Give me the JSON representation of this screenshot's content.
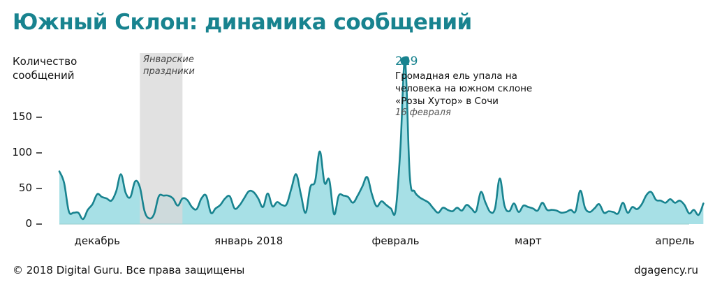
{
  "title": "Южный Склон: динамика сообщений",
  "footer": {
    "copyright": "© 2018 Digital Guru. Все права защищены",
    "site": "dgagency.ru"
  },
  "colors": {
    "accent": "#18838f",
    "area_fill": "#a7e0e6",
    "holiday_band": "#d9d9d9"
  },
  "chart_data": {
    "type": "area",
    "ylabel": "Количество сообщений",
    "xlabel": "",
    "ylim": [
      0,
      229
    ],
    "yticks": [
      0,
      50,
      100,
      150
    ],
    "ytick_labels": [
      "0",
      "50",
      "100",
      "150"
    ],
    "x_tick_labels": [
      {
        "label": "декабрь",
        "day": 8
      },
      {
        "label": "январь 2018",
        "day": 40
      },
      {
        "label": "февраль",
        "day": 71
      },
      {
        "label": "март",
        "day": 99
      },
      {
        "label": "апрель",
        "day": 130
      }
    ],
    "x_range_days": [
      0,
      133
    ],
    "values": [
      74,
      58,
      18,
      16,
      16,
      7,
      20,
      28,
      42,
      38,
      36,
      33,
      46,
      70,
      44,
      38,
      60,
      52,
      18,
      8,
      14,
      39,
      40,
      40,
      36,
      26,
      36,
      34,
      24,
      21,
      36,
      40,
      16,
      22,
      27,
      36,
      39,
      22,
      26,
      36,
      46,
      45,
      36,
      24,
      43,
      25,
      31,
      27,
      28,
      50,
      70,
      42,
      16,
      52,
      60,
      102,
      58,
      62,
      14,
      40,
      40,
      38,
      30,
      40,
      53,
      66,
      42,
      25,
      32,
      27,
      22,
      19,
      104,
      229,
      68,
      46,
      38,
      34,
      30,
      22,
      16,
      23,
      20,
      18,
      23,
      19,
      27,
      22,
      18,
      45,
      30,
      17,
      22,
      64,
      26,
      18,
      29,
      17,
      26,
      24,
      22,
      19,
      30,
      20,
      20,
      19,
      16,
      17,
      20,
      18,
      47,
      23,
      17,
      22,
      28,
      16,
      18,
      17,
      15,
      30,
      16,
      24,
      21,
      28,
      41,
      45,
      34,
      33,
      30,
      35,
      30,
      33,
      27,
      15,
      20,
      13,
      29
    ],
    "shaded_period": {
      "label": "Январские праздники",
      "start_day": 17,
      "end_day": 26
    },
    "peak": {
      "value": 229,
      "day": 73,
      "description": "Громадная ель упала на человека на южном склоне «Розы Хутор» в Сочи",
      "date": "16 февраля"
    }
  }
}
